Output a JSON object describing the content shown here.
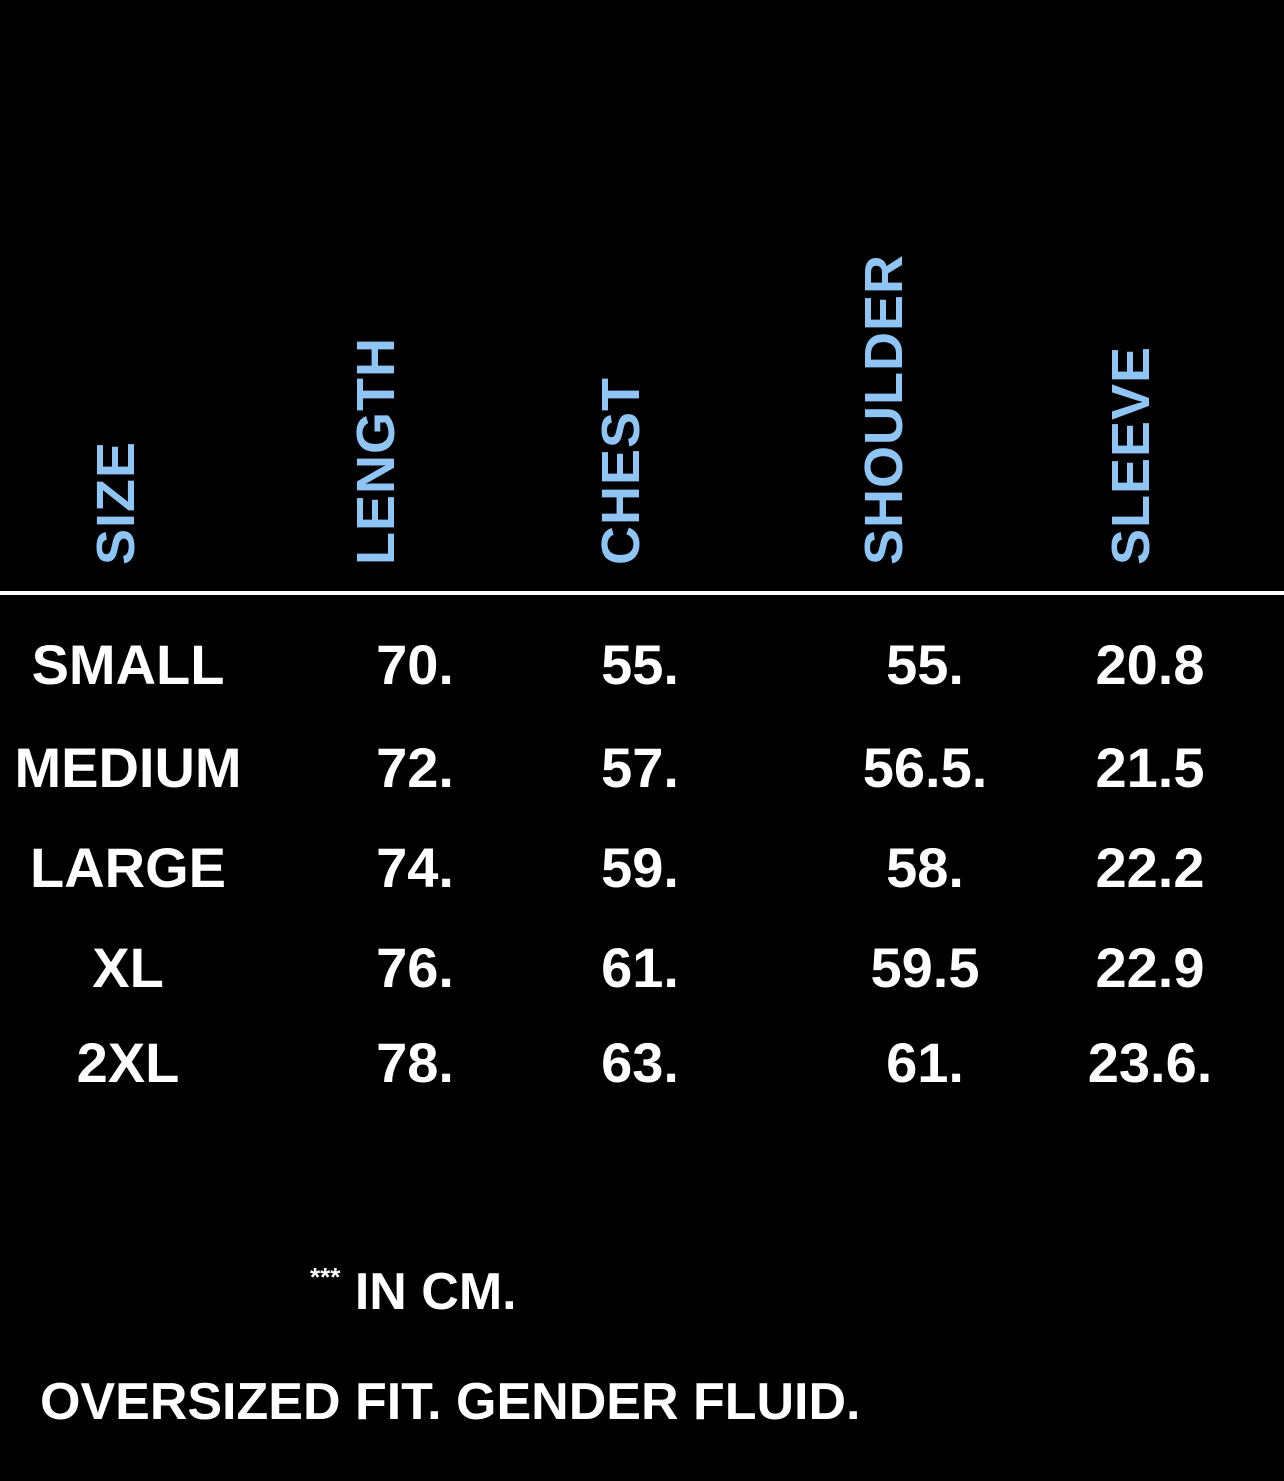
{
  "accent_color": "#8ec5f5",
  "table": {
    "headers": [
      "SIZE",
      "LENGTH",
      "CHEST",
      "SHOULDER",
      "SLEEVE"
    ],
    "rows": [
      [
        "SMALL",
        "70.",
        "55.",
        "55.",
        "20.8"
      ],
      [
        "MEDIUM",
        "72.",
        "57.",
        "56.5.",
        "21.5"
      ],
      [
        "LARGE",
        "74.",
        "59.",
        "58.",
        "22.2"
      ],
      [
        "XL",
        "76.",
        "61.",
        "59.5",
        "22.9"
      ],
      [
        "2XL",
        "78.",
        "63.",
        "61.",
        "23.6."
      ]
    ]
  },
  "footer": {
    "stars": "***",
    "unit_note": "IN CM.",
    "fit_note": "OVERSIZED FIT. GENDER FLUID."
  }
}
